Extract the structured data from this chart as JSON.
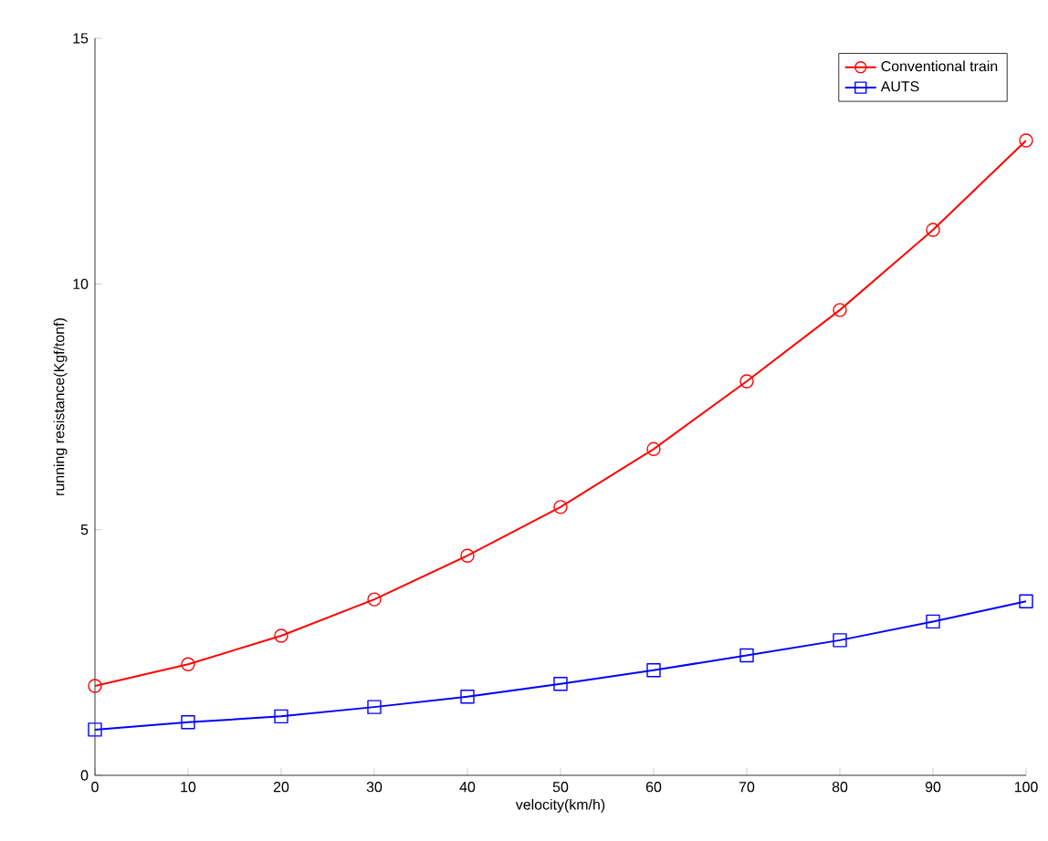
{
  "chart_data": {
    "type": "line",
    "xlabel": "velocity(km/h)",
    "ylabel": "running resistance(Kgf/tonf)",
    "x": [
      0,
      10,
      20,
      30,
      40,
      50,
      60,
      70,
      80,
      90,
      100
    ],
    "series": [
      {
        "name": "Conventional train",
        "color": "#ff0000",
        "marker": "circle",
        "values": [
          1.82,
          2.26,
          2.84,
          3.58,
          4.47,
          5.46,
          6.64,
          8.02,
          9.47,
          11.1,
          12.92
        ]
      },
      {
        "name": "AUTS",
        "color": "#0000ff",
        "marker": "square",
        "values": [
          0.93,
          1.08,
          1.2,
          1.39,
          1.6,
          1.86,
          2.14,
          2.44,
          2.75,
          3.13,
          3.54
        ]
      }
    ],
    "xlim": [
      0,
      100
    ],
    "ylim": [
      0,
      15
    ],
    "xticks": [
      0,
      10,
      20,
      30,
      40,
      50,
      60,
      70,
      80,
      90,
      100
    ],
    "yticks": [
      0,
      5,
      10,
      15
    ],
    "legend": "top right",
    "grid": false,
    "line_style": "solid"
  }
}
